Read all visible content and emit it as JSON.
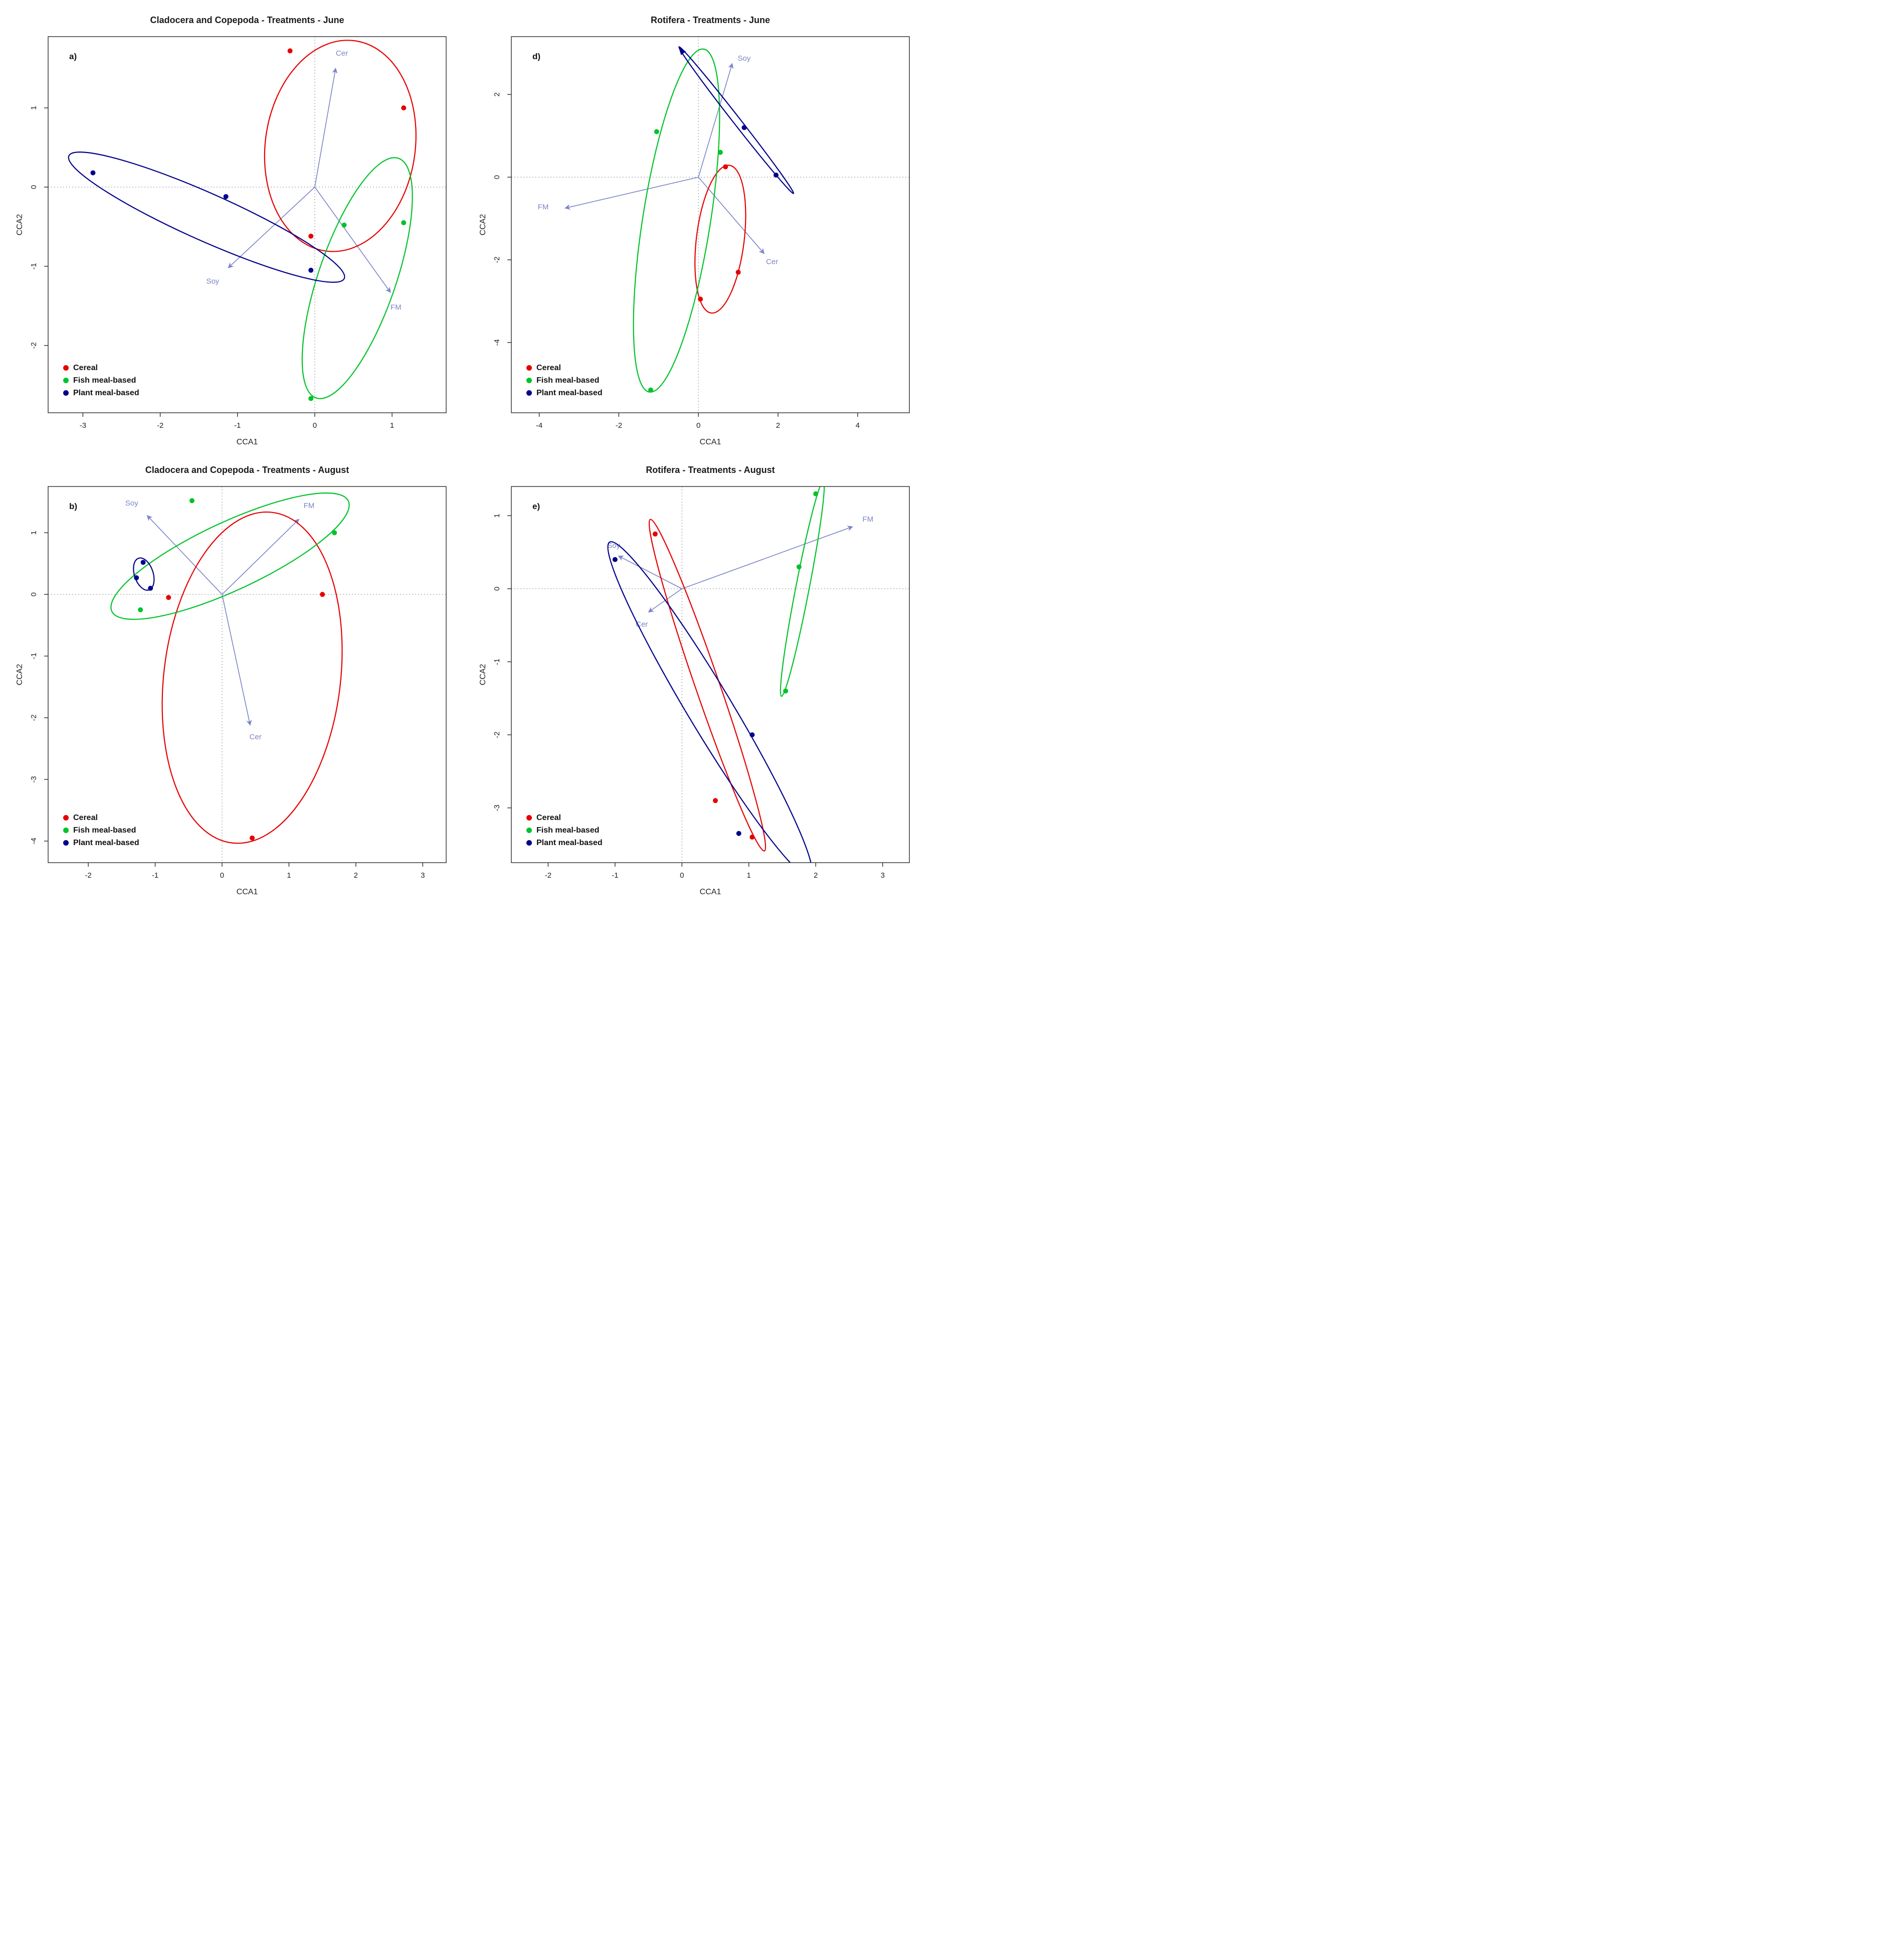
{
  "page": {
    "background": "#ffffff"
  },
  "legend": {
    "items": [
      {
        "label": "Cereal",
        "color": "#e60000"
      },
      {
        "label": "Fish meal-based",
        "color": "#00c22a"
      },
      {
        "label": "Plant meal-based",
        "color": "#00008b"
      }
    ]
  },
  "style": {
    "arrow_color": "#7b84c6",
    "zero_line_color": "#858585",
    "axis_color": "#2b2b2b"
  },
  "chart_data": [
    {
      "type": "scatter",
      "panel_label": "a)",
      "title": "Cladocera and Copepoda - Treatments - June",
      "xlabel": "CCA1",
      "ylabel": "CCA2",
      "xlim": [
        -3.45,
        1.7
      ],
      "ylim": [
        -2.85,
        1.9
      ],
      "x_ticks": [
        -3,
        -2,
        -1,
        0,
        1
      ],
      "y_ticks": [
        -2,
        -1,
        0,
        1
      ],
      "grid": false,
      "legend_position": "bottom-left",
      "arrows": [
        {
          "label": "Cer",
          "tip": [
            0.27,
            1.5
          ],
          "label_at": [
            0.35,
            1.66
          ]
        },
        {
          "label": "Soy",
          "tip": [
            -1.12,
            -1.02
          ],
          "label_at": [
            -1.32,
            -1.22
          ]
        },
        {
          "label": "FM",
          "tip": [
            0.98,
            -1.33
          ],
          "label_at": [
            1.05,
            -1.55
          ]
        }
      ],
      "series": [
        {
          "name": "Cereal",
          "color_ref": 0,
          "points": [
            [
              -0.32,
              1.72
            ],
            [
              1.15,
              1.0
            ],
            [
              -0.05,
              -0.62
            ]
          ],
          "ellipse": {
            "center": [
              0.33,
              0.52
            ],
            "rx": 0.97,
            "ry": 1.34,
            "angle": 8
          }
        },
        {
          "name": "Fish meal-based",
          "color_ref": 1,
          "points": [
            [
              0.38,
              -0.48
            ],
            [
              1.15,
              -0.45
            ],
            [
              -0.05,
              -2.67
            ]
          ],
          "ellipse": {
            "center": [
              0.55,
              -1.15
            ],
            "rx": 0.5,
            "ry": 1.6,
            "angle": 19
          }
        },
        {
          "name": "Plant meal-based",
          "color_ref": 2,
          "points": [
            [
              -2.87,
              0.18
            ],
            [
              -1.15,
              -0.12
            ],
            [
              -0.05,
              -1.05
            ]
          ],
          "ellipse": {
            "center": [
              -1.4,
              -0.38
            ],
            "rx": 1.95,
            "ry": 0.3,
            "angle": 24
          }
        }
      ]
    },
    {
      "type": "scatter",
      "panel_label": "d)",
      "title": "Rotifera - Treatments - June",
      "xlabel": "CCA1",
      "ylabel": "CCA2",
      "xlim": [
        -4.7,
        5.3
      ],
      "ylim": [
        -5.7,
        3.4
      ],
      "x_ticks": [
        -4,
        -2,
        0,
        2,
        4
      ],
      "y_ticks": [
        -4,
        -2,
        0,
        2
      ],
      "grid": false,
      "legend_position": "bottom-left",
      "arrows": [
        {
          "label": "Soy",
          "tip": [
            0.85,
            2.75
          ],
          "label_at": [
            1.15,
            2.82
          ]
        },
        {
          "label": "FM",
          "tip": [
            -3.35,
            -0.75
          ],
          "label_at": [
            -3.9,
            -0.78
          ]
        },
        {
          "label": "Cer",
          "tip": [
            1.65,
            -1.85
          ],
          "label_at": [
            1.85,
            -2.1
          ]
        }
      ],
      "series": [
        {
          "name": "Cereal",
          "color_ref": 0,
          "points": [
            [
              0.68,
              0.25
            ],
            [
              1.0,
              -2.3
            ],
            [
              0.05,
              -2.95
            ]
          ],
          "ellipse": {
            "center": [
              0.55,
              -1.5
            ],
            "rx": 0.6,
            "ry": 1.8,
            "angle": 7
          }
        },
        {
          "name": "Fish meal-based",
          "color_ref": 1,
          "points": [
            [
              -1.05,
              1.1
            ],
            [
              0.55,
              0.6
            ],
            [
              -1.2,
              -5.15
            ]
          ],
          "ellipse": {
            "center": [
              -0.55,
              -1.05
            ],
            "rx": 0.85,
            "ry": 4.2,
            "angle": 9
          }
        },
        {
          "name": "Plant meal-based",
          "color_ref": 2,
          "points": [
            [
              1.15,
              1.2
            ],
            [
              1.95,
              0.05
            ]
          ],
          "ellipse": {
            "center": [
              0.95,
              1.38
            ],
            "rx": 0.09,
            "ry": 2.25,
            "angle": -38,
            "tip_marker": {
              "at": [
                -0.5,
                3.15
              ],
              "angle": 232
            }
          }
        }
      ]
    },
    {
      "type": "scatter",
      "panel_label": "b)",
      "title": "Cladocera and Copepoda - Treatments - August",
      "xlabel": "CCA1",
      "ylabel": "CCA2",
      "xlim": [
        -2.6,
        3.35
      ],
      "ylim": [
        -4.35,
        1.75
      ],
      "x_ticks": [
        -2,
        -1,
        0,
        1,
        2,
        3
      ],
      "y_ticks": [
        -4,
        -3,
        -2,
        -1,
        0,
        1
      ],
      "grid": false,
      "legend_position": "bottom-left",
      "arrows": [
        {
          "label": "Soy",
          "tip": [
            -1.12,
            1.28
          ],
          "label_at": [
            -1.35,
            1.44
          ]
        },
        {
          "label": "FM",
          "tip": [
            1.15,
            1.22
          ],
          "label_at": [
            1.3,
            1.4
          ]
        },
        {
          "label": "Cer",
          "tip": [
            0.42,
            -2.12
          ],
          "label_at": [
            0.5,
            -2.35
          ]
        }
      ],
      "series": [
        {
          "name": "Cereal",
          "color_ref": 0,
          "points": [
            [
              -0.8,
              -0.05
            ],
            [
              1.5,
              0.0
            ],
            [
              0.45,
              -3.95
            ]
          ],
          "ellipse": {
            "center": [
              0.45,
              -1.35
            ],
            "rx": 1.32,
            "ry": 2.7,
            "angle": 7
          }
        },
        {
          "name": "Fish meal-based",
          "color_ref": 1,
          "points": [
            [
              -0.45,
              1.52
            ],
            [
              1.68,
              1.0
            ],
            [
              -1.22,
              -0.25
            ]
          ],
          "ellipse": {
            "center": [
              0.12,
              0.62
            ],
            "rx": 1.95,
            "ry": 0.55,
            "angle": -25
          }
        },
        {
          "name": "Plant meal-based",
          "color_ref": 2,
          "points": [
            [
              -1.28,
              0.27
            ],
            [
              -1.07,
              0.1
            ],
            [
              -1.18,
              0.52
            ]
          ],
          "ellipse": {
            "center": [
              -1.17,
              0.33
            ],
            "rx": 0.14,
            "ry": 0.27,
            "angle": -18
          }
        }
      ]
    },
    {
      "type": "scatter",
      "panel_label": "e)",
      "title": "Rotifera - Treatments - August",
      "xlabel": "CCA1",
      "ylabel": "CCA2",
      "xlim": [
        -2.55,
        3.4
      ],
      "ylim": [
        -3.75,
        1.4
      ],
      "x_ticks": [
        -2,
        -1,
        0,
        1,
        2,
        3
      ],
      "y_ticks": [
        -3,
        -2,
        -1,
        0,
        1
      ],
      "grid": false,
      "legend_position": "bottom-left",
      "arrows": [
        {
          "label": "FM",
          "tip": [
            2.55,
            0.85
          ],
          "label_at": [
            2.78,
            0.92
          ]
        },
        {
          "label": "Soy",
          "tip": [
            -0.95,
            0.45
          ],
          "label_at": [
            -1.02,
            0.56
          ]
        },
        {
          "label": "Cer",
          "tip": [
            -0.5,
            -0.32
          ],
          "label_at": [
            -0.6,
            -0.52
          ]
        }
      ],
      "series": [
        {
          "name": "Cereal",
          "color_ref": 0,
          "points": [
            [
              -0.4,
              0.75
            ],
            [
              0.5,
              -2.9
            ],
            [
              1.05,
              -3.4
            ]
          ],
          "ellipse": {
            "center": [
              0.38,
              -1.32
            ],
            "rx": 0.18,
            "ry": 2.4,
            "angle": -19
          }
        },
        {
          "name": "Fish meal-based",
          "color_ref": 1,
          "points": [
            [
              2.0,
              1.3
            ],
            [
              1.75,
              0.3
            ],
            [
              1.55,
              -1.4
            ]
          ],
          "ellipse": {
            "center": [
              1.8,
              0.0
            ],
            "rx": 0.1,
            "ry": 1.5,
            "angle": 11
          }
        },
        {
          "name": "Plant meal-based",
          "color_ref": 2,
          "points": [
            [
              -1.0,
              0.4
            ],
            [
              1.05,
              -2.0
            ],
            [
              0.85,
              -3.35
            ]
          ],
          "ellipse": {
            "center": [
              0.42,
              -1.65
            ],
            "rx": 0.33,
            "ry": 2.67,
            "angle": -31
          }
        }
      ]
    }
  ]
}
